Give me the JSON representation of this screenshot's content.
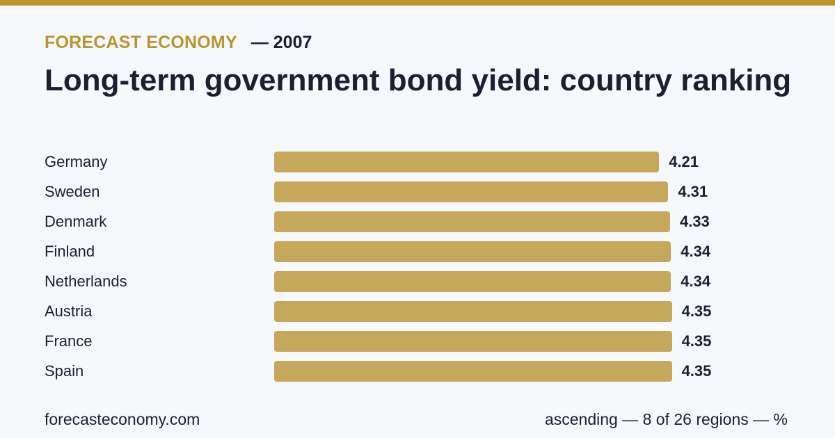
{
  "header": {
    "brand": "FORECAST ECONOMY",
    "year": "— 2007"
  },
  "chart_data": {
    "type": "bar",
    "orientation": "horizontal",
    "title": "Long-term government bond yield: country ranking",
    "categories": [
      "Germany",
      "Sweden",
      "Denmark",
      "Finland",
      "Netherlands",
      "Austria",
      "France",
      "Spain"
    ],
    "values": [
      4.21,
      4.31,
      4.33,
      4.34,
      4.34,
      4.35,
      4.35,
      4.35
    ],
    "value_labels": [
      "4.21",
      "4.31",
      "4.33",
      "4.34",
      "4.34",
      "4.35",
      "4.35",
      "4.35"
    ],
    "xlabel": "",
    "ylabel": "",
    "grid": false,
    "legend": "none",
    "bar_color": "#c6a85c"
  },
  "footer": {
    "source": "forecasteconomy.com",
    "note": "ascending — 8 of 26 regions — %"
  },
  "colors": {
    "accent": "#b8962e",
    "bar": "#c6a85c",
    "text": "#1e1e30",
    "background": "#f7f8fc"
  }
}
